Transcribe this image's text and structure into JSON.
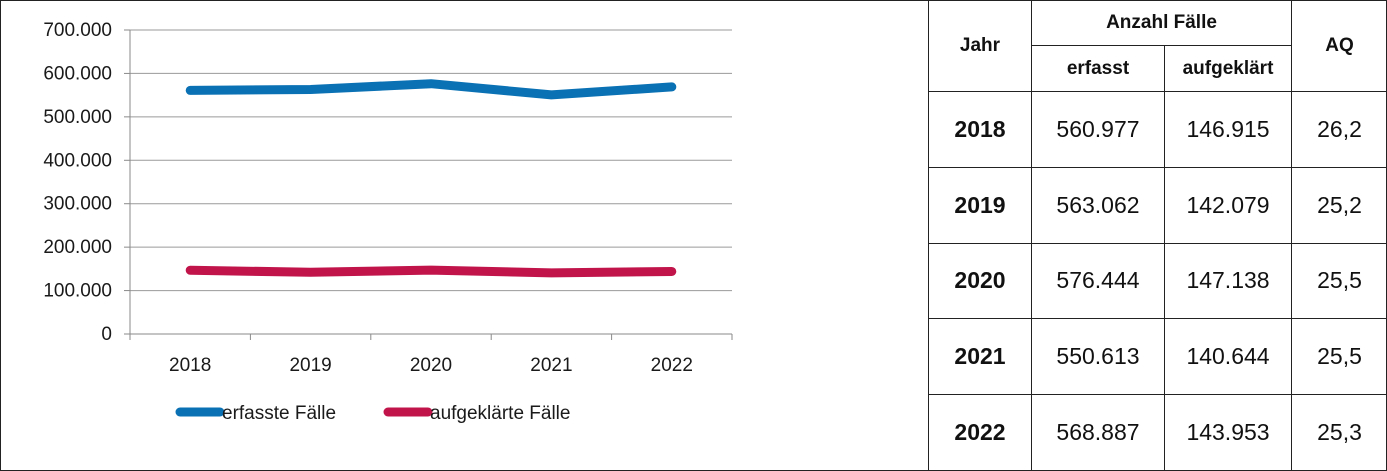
{
  "chart_data": {
    "type": "line",
    "categories": [
      "2018",
      "2019",
      "2020",
      "2021",
      "2022"
    ],
    "series": [
      {
        "name": "erfasste Fälle",
        "color": "#0a71b4",
        "values": [
          560977,
          563062,
          576444,
          550613,
          568887
        ]
      },
      {
        "name": "aufgeklärte Fälle",
        "color": "#c0144b",
        "values": [
          146915,
          142079,
          147138,
          140644,
          143953
        ]
      }
    ],
    "ylim": [
      0,
      700000
    ],
    "yticks": [
      0,
      100000,
      200000,
      300000,
      400000,
      500000,
      600000,
      700000
    ],
    "ytick_labels": [
      "0",
      "100.000",
      "200.000",
      "300.000",
      "400.000",
      "500.000",
      "600.000",
      "700.000"
    ],
    "grid": true,
    "legend": "bottom",
    "title": "",
    "xlabel": "",
    "ylabel": ""
  },
  "table": {
    "header": {
      "year": "Jahr",
      "group": "Anzahl Fälle",
      "col1": "erfasst",
      "col2": "aufgeklärt",
      "aq": "AQ"
    },
    "rows": [
      {
        "year": "2018",
        "erfasst": "560.977",
        "aufgeklaert": "146.915",
        "aq": "26,2"
      },
      {
        "year": "2019",
        "erfasst": "563.062",
        "aufgeklaert": "142.079",
        "aq": "25,2"
      },
      {
        "year": "2020",
        "erfasst": "576.444",
        "aufgeklaert": "147.138",
        "aq": "25,5"
      },
      {
        "year": "2021",
        "erfasst": "550.613",
        "aufgeklaert": "140.644",
        "aq": "25,5"
      },
      {
        "year": "2022",
        "erfasst": "568.887",
        "aufgeklaert": "143.953",
        "aq": "25,3"
      }
    ]
  }
}
